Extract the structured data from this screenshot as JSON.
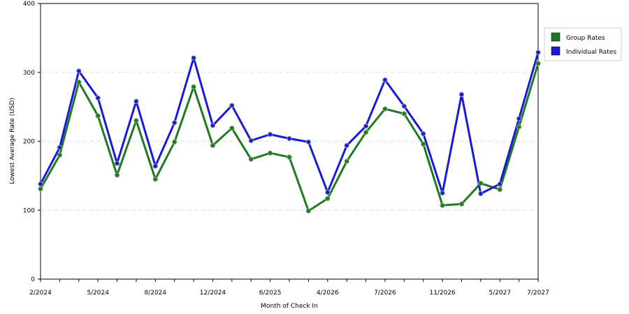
{
  "chart_data": {
    "type": "line",
    "xlabel": "Month of Check In",
    "ylabel": "Lowest Average Rate (USD)",
    "ylim": [
      0,
      400
    ],
    "yticks": [
      "0",
      "100",
      "200",
      "300",
      "400"
    ],
    "xtick_labels": [
      "2/2024",
      "5/2024",
      "8/2024",
      "12/2024",
      "6/2025",
      "4/2026",
      "7/2026",
      "11/2026",
      "5/2027",
      "7/2027"
    ],
    "grid": true,
    "legend_position": "right",
    "series": [
      {
        "name": "Group Rates",
        "color": "#1f7a1f",
        "values": [
          131,
          180,
          286,
          237,
          151,
          230,
          145,
          199,
          279,
          194,
          219,
          174,
          183,
          177,
          99,
          117,
          171,
          213,
          247,
          240,
          196,
          107,
          109,
          139,
          130,
          221,
          313
        ]
      },
      {
        "name": "Individual Rates",
        "color": "#1a1ad6",
        "values": [
          138,
          191,
          302,
          263,
          168,
          258,
          164,
          227,
          321,
          223,
          252,
          201,
          210,
          204,
          199,
          126,
          194,
          222,
          289,
          251,
          211,
          125,
          268,
          124,
          138,
          233,
          329
        ]
      }
    ]
  }
}
